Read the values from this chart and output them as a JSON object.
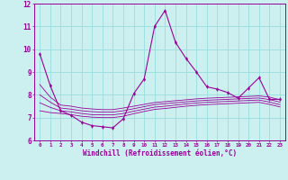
{
  "xlabel": "Windchill (Refroidissement éolien,°C)",
  "x": [
    0,
    1,
    2,
    3,
    4,
    5,
    6,
    7,
    8,
    9,
    10,
    11,
    12,
    13,
    14,
    15,
    16,
    17,
    18,
    19,
    20,
    21,
    22,
    23
  ],
  "main_line": [
    9.8,
    8.4,
    7.3,
    7.1,
    6.8,
    6.65,
    6.6,
    6.55,
    6.95,
    8.05,
    8.7,
    11.0,
    11.7,
    10.3,
    9.6,
    9.0,
    8.35,
    8.25,
    8.1,
    7.85,
    8.3,
    8.75,
    7.8,
    7.8
  ],
  "band1_upper": [
    8.45,
    7.9,
    7.55,
    7.5,
    7.42,
    7.38,
    7.35,
    7.35,
    7.42,
    7.5,
    7.58,
    7.66,
    7.7,
    7.74,
    7.78,
    7.82,
    7.85,
    7.87,
    7.89,
    7.91,
    7.93,
    7.95,
    7.9,
    7.78
  ],
  "band1_lower": [
    7.65,
    7.45,
    7.3,
    7.25,
    7.18,
    7.13,
    7.12,
    7.12,
    7.18,
    7.28,
    7.37,
    7.46,
    7.5,
    7.55,
    7.6,
    7.64,
    7.67,
    7.69,
    7.71,
    7.73,
    7.75,
    7.77,
    7.68,
    7.57
  ],
  "band2_upper": [
    8.0,
    7.68,
    7.42,
    7.37,
    7.3,
    7.26,
    7.24,
    7.24,
    7.3,
    7.39,
    7.48,
    7.57,
    7.61,
    7.65,
    7.69,
    7.73,
    7.76,
    7.78,
    7.8,
    7.82,
    7.84,
    7.86,
    7.79,
    7.68
  ],
  "band2_lower": [
    7.3,
    7.22,
    7.18,
    7.13,
    7.06,
    7.02,
    7.0,
    7.0,
    7.06,
    7.17,
    7.27,
    7.36,
    7.4,
    7.45,
    7.5,
    7.54,
    7.57,
    7.59,
    7.61,
    7.63,
    7.65,
    7.67,
    7.58,
    7.47
  ],
  "line_color": "#990099",
  "bg_color": "#ccf0f0",
  "grid_color": "#99dddd",
  "text_color": "#990099",
  "ylim": [
    6,
    12
  ],
  "xlim": [
    -0.5,
    23.5
  ]
}
